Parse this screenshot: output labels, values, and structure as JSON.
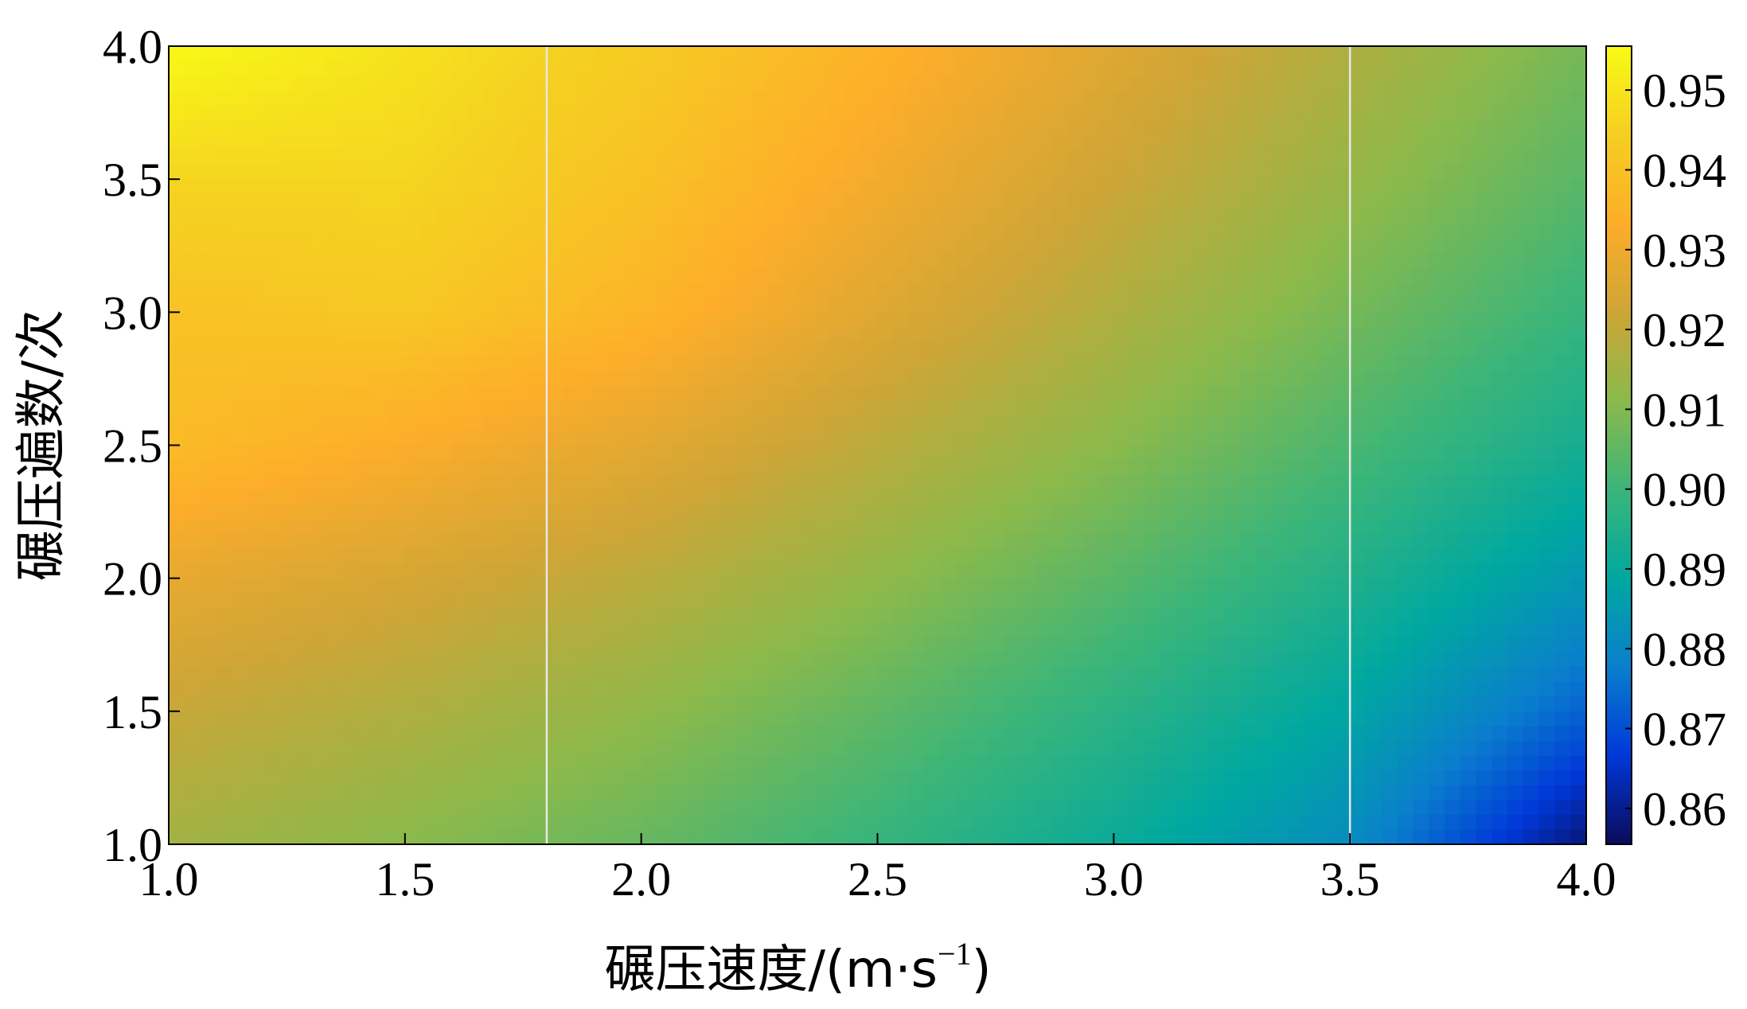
{
  "chart_data": {
    "type": "heatmap",
    "title": "",
    "xlabel": "碾压速度/(m·s⁻¹)",
    "xlabel_parts": {
      "main": "碾压速度/(m·s",
      "sup": "−1",
      "close": ")"
    },
    "ylabel": "碾压遍数/次",
    "xlim": [
      1.0,
      4.0
    ],
    "ylim": [
      1.0,
      4.0
    ],
    "x_ticks": [
      1.0,
      1.5,
      2.0,
      2.5,
      3.0,
      3.5,
      4.0
    ],
    "y_ticks": [
      1.0,
      1.5,
      2.0,
      2.5,
      3.0,
      3.5,
      4.0
    ],
    "x_tick_labels": [
      "1.0",
      "1.5",
      "2.0",
      "2.5",
      "3.0",
      "3.5",
      "4.0"
    ],
    "y_tick_labels": [
      "1.0",
      "1.5",
      "2.0",
      "2.5",
      "3.0",
      "3.5",
      "4.0"
    ],
    "grid": false,
    "vertical_reference_lines_x": [
      1.8,
      3.5
    ],
    "colorbar": {
      "range": [
        0.8555,
        0.9555
      ],
      "ticks": [
        0.86,
        0.87,
        0.88,
        0.89,
        0.9,
        0.91,
        0.92,
        0.93,
        0.94,
        0.95
      ],
      "tick_labels": [
        "0.86",
        "0.87",
        "0.88",
        "0.89",
        "0.90",
        "0.91",
        "0.92",
        "0.93",
        "0.94",
        "0.95"
      ],
      "colormap": [
        "#0b0b5a",
        "#0038d8",
        "#0a7fcc",
        "#00a8a0",
        "#3bb579",
        "#8bb94b",
        "#cea537",
        "#fdad2a",
        "#f5cf22",
        "#f8fb15"
      ]
    },
    "grid_points": {
      "x": [
        1.0,
        1.5,
        2.0,
        2.5,
        3.0,
        3.5,
        4.0
      ],
      "y": [
        1.0,
        1.5,
        2.0,
        2.5,
        3.0,
        3.5,
        4.0
      ],
      "z": [
        [
          0.915,
          0.911,
          0.906,
          0.899,
          0.891,
          0.881,
          0.858
        ],
        [
          0.921,
          0.917,
          0.912,
          0.905,
          0.897,
          0.888,
          0.873
        ],
        [
          0.928,
          0.924,
          0.919,
          0.912,
          0.904,
          0.895,
          0.884
        ],
        [
          0.938,
          0.933,
          0.927,
          0.919,
          0.911,
          0.902,
          0.893
        ],
        [
          0.94,
          0.942,
          0.936,
          0.926,
          0.917,
          0.908,
          0.899
        ],
        [
          0.946,
          0.946,
          0.94,
          0.931,
          0.922,
          0.913,
          0.904
        ],
        [
          0.955,
          0.949,
          0.943,
          0.935,
          0.926,
          0.917,
          0.908
        ]
      ]
    }
  }
}
